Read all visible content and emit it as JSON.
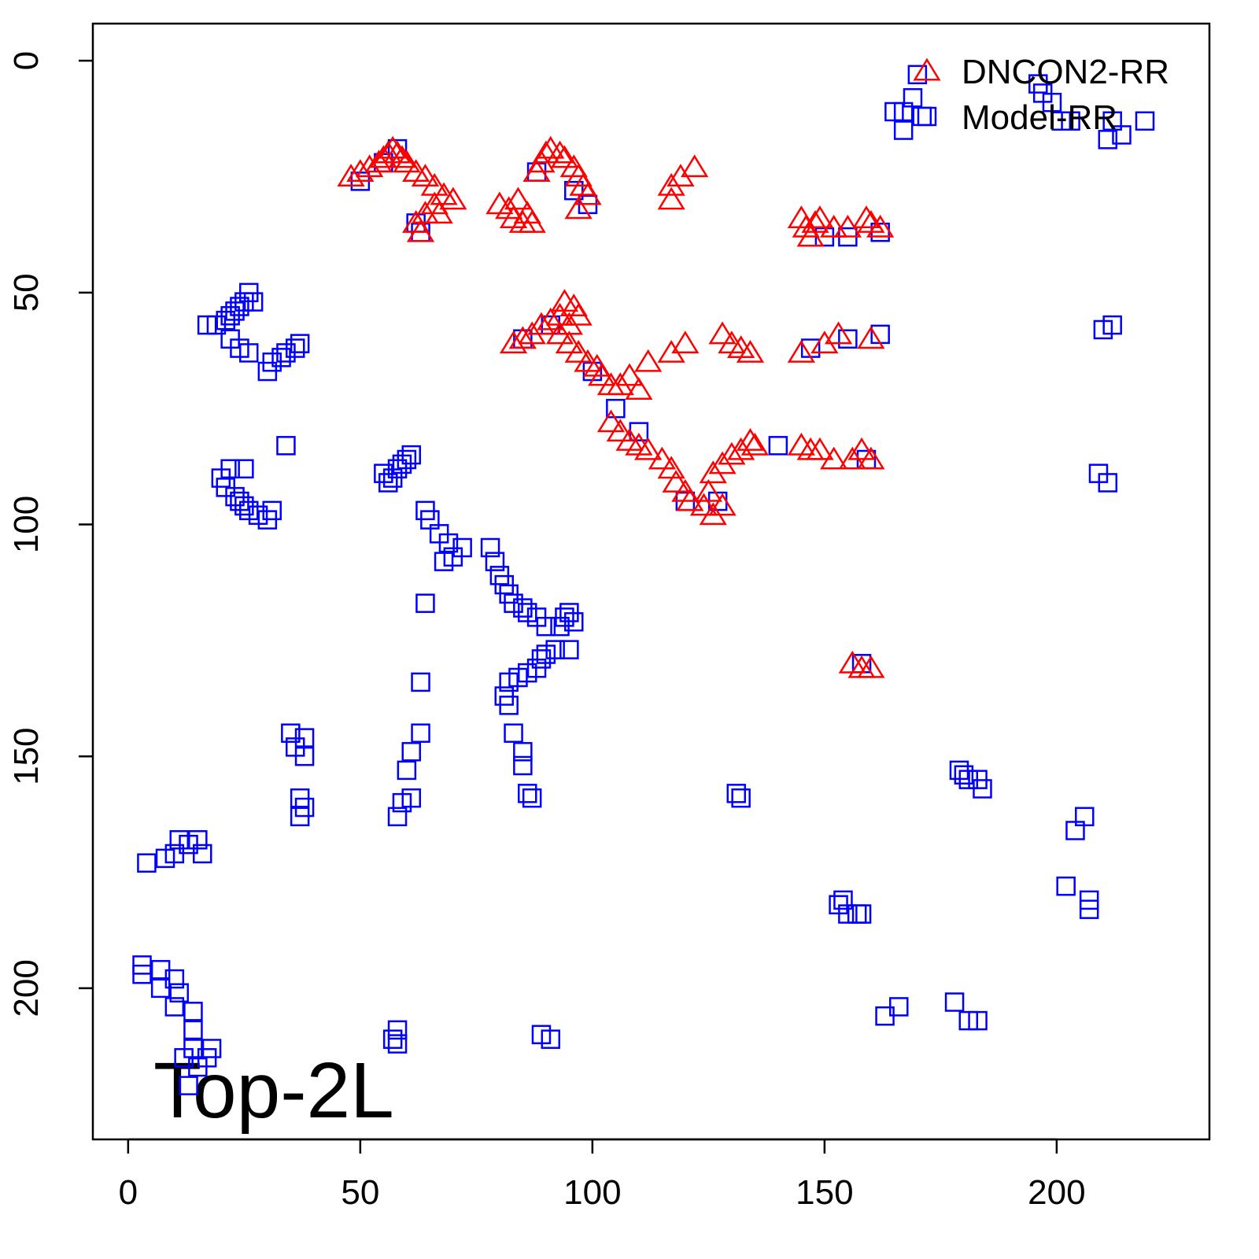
{
  "chart_data": {
    "type": "scatter",
    "annotation": "Top-2L",
    "legend": "topright",
    "xlim": [
      -7.6,
      232.9
    ],
    "ylim": [
      232.6,
      -8.0
    ],
    "xticks": [
      0,
      50,
      100,
      150,
      200
    ],
    "yticks": [
      0,
      50,
      100,
      150,
      200
    ],
    "series": [
      {
        "name": "DNCON2-RR",
        "color": "#ff0000",
        "marker": "triangle",
        "x": [
          48,
          50,
          52,
          54,
          55,
          56,
          57,
          58,
          59,
          60,
          62,
          64,
          66,
          68,
          70,
          66,
          64,
          62,
          63,
          67,
          80,
          82,
          83,
          85,
          87,
          86,
          84,
          88,
          89,
          90,
          91,
          93,
          94,
          96,
          97,
          98,
          99,
          97,
          117,
          117,
          119,
          122,
          145,
          146,
          147,
          148,
          149,
          152,
          155,
          159,
          160,
          162,
          83,
          85,
          87,
          89,
          91,
          93,
          94,
          96,
          97,
          95,
          93,
          95,
          97,
          99,
          101,
          102,
          104,
          106,
          108,
          110,
          112,
          117,
          120,
          128,
          130,
          132,
          134,
          145,
          150,
          153,
          160,
          104,
          106,
          108,
          110,
          112,
          115,
          117,
          118,
          120,
          121,
          124,
          126,
          128,
          125,
          126,
          128,
          130,
          132,
          134,
          135,
          145,
          147,
          149,
          152,
          156,
          158,
          160,
          156,
          158,
          160
        ],
        "y": [
          25,
          24,
          23,
          22,
          21,
          20,
          19,
          20,
          21,
          22,
          24,
          25,
          27,
          29,
          30,
          31,
          33,
          35,
          37,
          33,
          31,
          32,
          34,
          35,
          35,
          33,
          30,
          24,
          22,
          20,
          19,
          20,
          21,
          23,
          25,
          27,
          29,
          32,
          30,
          27,
          25,
          23,
          34,
          36,
          38,
          35,
          34,
          36,
          36,
          34,
          35,
          36,
          61,
          60,
          59,
          57,
          56,
          55,
          52,
          53,
          55,
          57,
          59,
          61,
          63,
          65,
          66,
          68,
          70,
          70,
          68,
          71,
          65,
          63,
          61,
          59,
          61,
          62,
          63,
          63,
          61,
          59,
          60,
          78,
          80,
          82,
          83,
          84,
          86,
          88,
          91,
          93,
          95,
          96,
          98,
          96,
          93,
          89,
          87,
          85,
          84,
          82,
          83,
          83,
          84,
          84,
          86,
          86,
          84,
          86,
          130,
          131,
          131
        ]
      },
      {
        "name": "Model-RR",
        "color": "#0000ff",
        "marker": "square",
        "x": [
          170,
          169,
          171,
          167,
          165,
          167,
          196,
          197,
          199,
          201,
          203,
          211,
          214,
          219,
          212,
          17,
          19,
          21,
          22,
          23,
          24,
          25,
          26,
          27,
          22,
          24,
          26,
          30,
          31,
          33,
          34,
          36,
          37,
          34,
          20,
          21,
          22,
          23,
          24,
          25,
          26,
          28,
          30,
          31,
          25,
          55,
          56,
          57,
          58,
          59,
          60,
          61,
          64,
          65,
          67,
          69,
          70,
          72,
          68,
          78,
          79,
          80,
          81,
          82,
          83,
          85,
          86,
          88,
          90,
          64,
          93,
          94,
          95,
          96,
          95,
          92,
          90,
          89,
          88,
          86,
          84,
          82,
          81,
          82,
          83,
          85,
          85,
          86,
          87,
          63,
          63,
          61,
          60,
          61,
          59,
          58,
          35,
          36,
          38,
          38,
          37,
          37,
          38,
          4,
          8,
          10,
          11,
          13,
          15,
          16,
          3,
          3,
          7,
          7,
          10,
          11,
          10,
          14,
          14,
          14,
          15,
          17,
          18,
          12,
          13,
          58,
          58,
          57,
          89,
          91,
          131,
          132,
          153,
          154,
          155,
          157,
          158,
          179,
          180,
          181,
          183,
          184,
          206,
          204,
          202,
          207,
          207,
          163,
          166,
          178,
          181,
          183,
          210,
          212,
          209,
          211,
          50,
          55,
          58,
          62,
          63,
          88,
          96,
          99,
          85,
          91,
          100,
          140,
          150,
          155,
          162,
          147,
          155,
          162,
          159,
          158,
          105,
          110,
          120,
          127
        ],
        "y": [
          3,
          8,
          12,
          11,
          11,
          15,
          5,
          7,
          9,
          13,
          13,
          17,
          16,
          13,
          13,
          57,
          57,
          56,
          55,
          54,
          53,
          52,
          50,
          52,
          60,
          62,
          63,
          67,
          65,
          64,
          63,
          62,
          61,
          83,
          90,
          92,
          88,
          94,
          95,
          96,
          97,
          98,
          99,
          97,
          88,
          89,
          91,
          90,
          88,
          87,
          86,
          85,
          97,
          99,
          102,
          104,
          107,
          105,
          108,
          105,
          108,
          111,
          113,
          115,
          117,
          118,
          119,
          120,
          122,
          117,
          122,
          120,
          119,
          121,
          127,
          127,
          128,
          129,
          131,
          132,
          133,
          134,
          137,
          139,
          145,
          149,
          152,
          158,
          159,
          134,
          145,
          149,
          153,
          159,
          160,
          163,
          145,
          148,
          146,
          150,
          159,
          163,
          161,
          173,
          172,
          171,
          168,
          169,
          168,
          171,
          195,
          197,
          196,
          200,
          198,
          201,
          204,
          205,
          209,
          213,
          217,
          215,
          213,
          215,
          221,
          209,
          212,
          211,
          210,
          211,
          158,
          159,
          182,
          181,
          184,
          184,
          184,
          153,
          154,
          155,
          155,
          157,
          163,
          166,
          178,
          181,
          183,
          206,
          204,
          203,
          207,
          207,
          58,
          57,
          89,
          91,
          26,
          22,
          19,
          35,
          37,
          24,
          28,
          31,
          60,
          57,
          67,
          83,
          38,
          38,
          37,
          62,
          60,
          59,
          86,
          130,
          75,
          80,
          95,
          95
        ]
      }
    ]
  }
}
